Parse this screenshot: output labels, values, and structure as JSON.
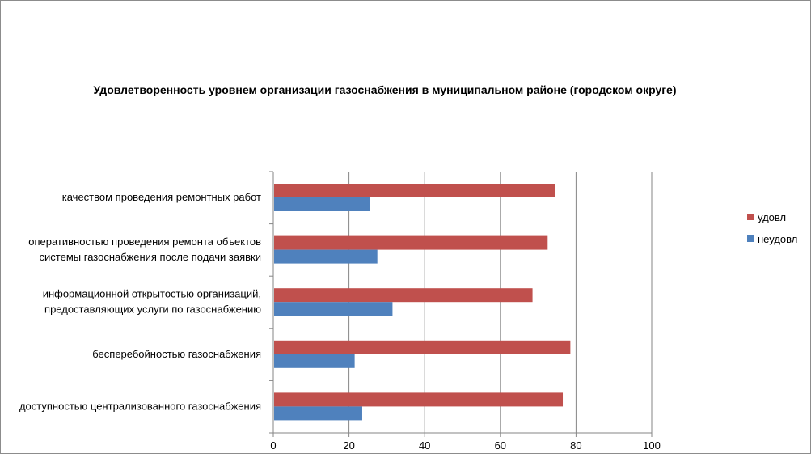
{
  "chart_data": {
    "type": "bar",
    "orientation": "horizontal",
    "title": "Удовлетворенность уровнем организации газоснабжения в муниципальном районе (городском округе)",
    "categories": [
      [
        "качеством  проведения  ремонтных  работ"
      ],
      [
        "оперативностью  проведения  ремонта объектов",
        "системы газоснабжения после подачи заявки"
      ],
      [
        "информационной открытостью организаций,",
        "предоставляющих услуги по газоснабжению"
      ],
      [
        "бесперебойностью  газоснабжения"
      ],
      [
        "доступностью централизованного газоснабжения"
      ]
    ],
    "series": [
      {
        "name": "удовл",
        "color": "#c0504d",
        "values": [
          74.5,
          72.5,
          68.5,
          78.5,
          76.5
        ]
      },
      {
        "name": "неудовл",
        "color": "#4f81bd",
        "values": [
          25.5,
          27.5,
          31.5,
          21.5,
          23.5
        ]
      }
    ],
    "xlim": [
      0,
      100
    ],
    "xticks": [
      "0",
      "20",
      "40",
      "60",
      "80",
      "100"
    ],
    "grid": true,
    "legend_position": "right"
  }
}
